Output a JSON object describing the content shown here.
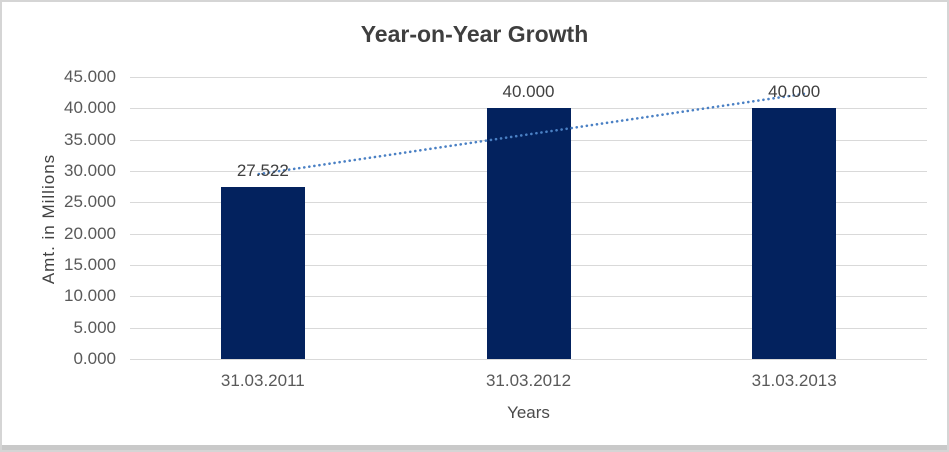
{
  "window": {
    "background": "#ffffff",
    "border_color": "#d5d5d5",
    "bottom_strip_color": "#c9c9c9"
  },
  "chart_data": {
    "type": "bar",
    "title": "Year-on-Year Growth",
    "categories": [
      "31.03.2011",
      "31.03.2012",
      "31.03.2013"
    ],
    "values": [
      27.522,
      40.0,
      40.0
    ],
    "value_labels": [
      "27.522",
      "40.000",
      "40.000"
    ],
    "xlabel": "Years",
    "ylabel": "Amt. in Millions",
    "ylim": [
      0,
      45
    ],
    "y_tick_values": [
      0,
      5,
      10,
      15,
      20,
      25,
      30,
      35,
      40,
      45
    ],
    "y_tick_labels": [
      "0.000",
      "5.000",
      "10.000",
      "15.000",
      "20.000",
      "25.000",
      "30.000",
      "35.000",
      "40.000",
      "45.000"
    ],
    "grid": "horizontal",
    "legend": "none",
    "bar_color": "#03225e",
    "gridline_color": "#d9d9d9",
    "axis_text_color": "#595959",
    "title_color": "#3f3f3f",
    "data_label_color": "#404040",
    "trendline": {
      "type": "linear",
      "style": "dotted",
      "color": "#4a80c4"
    }
  }
}
